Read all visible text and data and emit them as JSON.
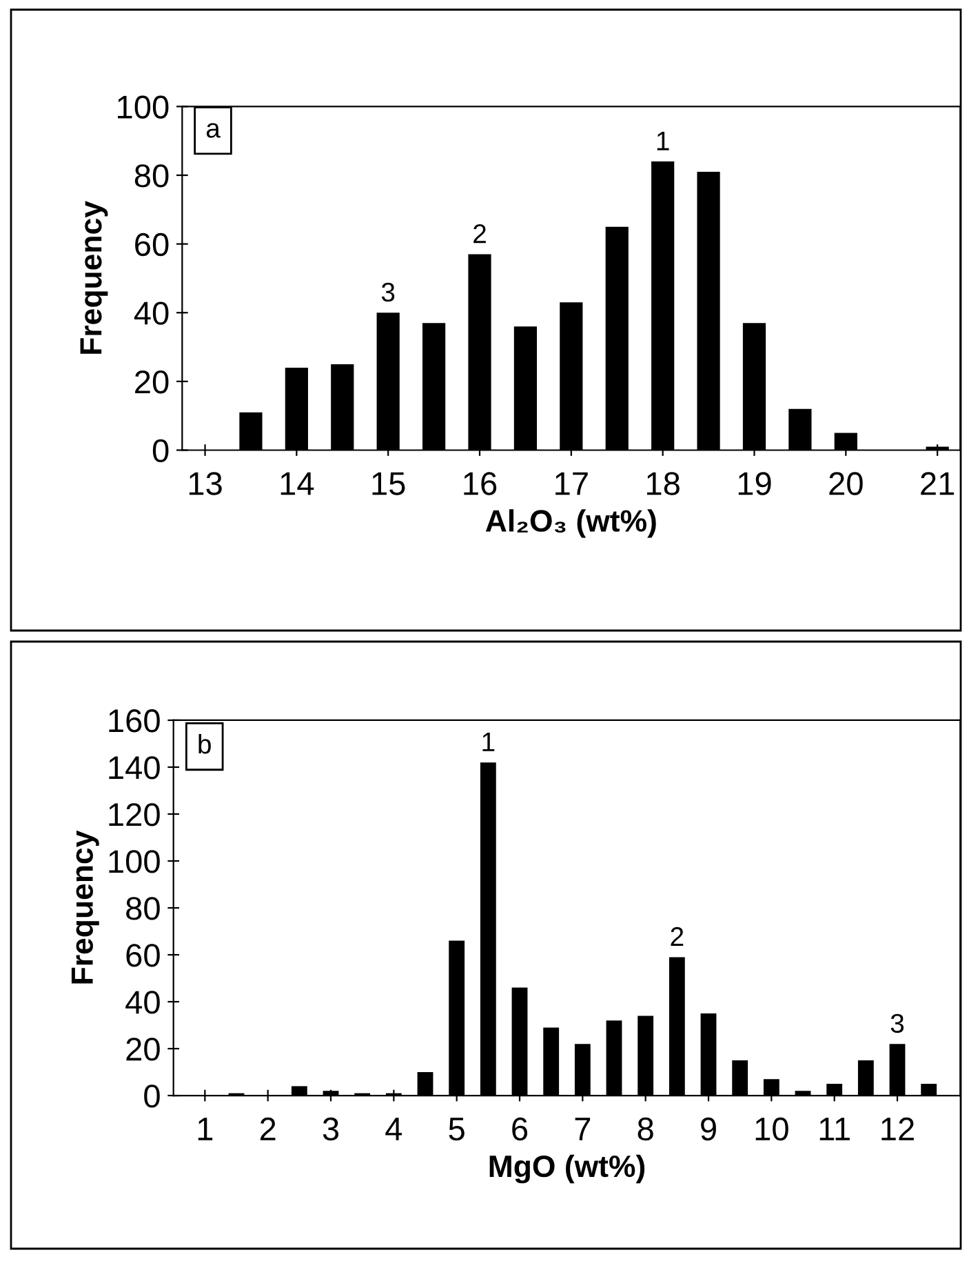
{
  "chart_data": [
    {
      "type": "bar",
      "xlabel": "Al₂O₃ (wt%)",
      "ylabel": "Frequency",
      "x": [
        13,
        13.5,
        14,
        14.5,
        15,
        15.5,
        16,
        16.5,
        17,
        17.5,
        18,
        18.5,
        19,
        19.5,
        20,
        20.5,
        21
      ],
      "series": [
        {
          "color": "#000000",
          "values": [
            0,
            11,
            24,
            25,
            40,
            37,
            57,
            36,
            43,
            65,
            84,
            81,
            37,
            12,
            5,
            0,
            1
          ]
        }
      ],
      "xlim": [
        12.75,
        21.25
      ],
      "xticks": [
        13,
        14,
        15,
        16,
        17,
        18,
        19,
        20,
        21
      ],
      "ylim": [
        0,
        100
      ],
      "yticks": [
        0,
        20,
        40,
        60,
        80,
        100
      ],
      "annotations": [
        "a",
        {
          "text": "1",
          "x": 18,
          "y": 84
        },
        {
          "text": "2",
          "x": 16,
          "y": 57
        },
        {
          "text": "3",
          "x": 15,
          "y": 40
        }
      ]
    },
    {
      "type": "bar",
      "xlabel": "MgO (wt%)",
      "ylabel": "Frequency",
      "x": [
        1,
        1.5,
        2,
        2.5,
        3,
        3.5,
        4,
        4.5,
        5,
        5.5,
        6,
        6.5,
        7,
        7.5,
        8,
        8.5,
        9,
        9.5,
        10,
        10.5,
        11,
        11.5,
        12,
        12.5
      ],
      "series": [
        {
          "color": "#000000",
          "values": [
            0,
            1,
            0,
            4,
            2,
            1,
            1,
            10,
            66,
            142,
            46,
            29,
            22,
            32,
            34,
            59,
            35,
            15,
            7,
            2,
            5,
            15,
            22,
            5
          ]
        }
      ],
      "xlim": [
        0.5,
        13
      ],
      "xticks": [
        1,
        2,
        3,
        4,
        5,
        6,
        7,
        8,
        9,
        10,
        11,
        12
      ],
      "ylim": [
        0,
        160
      ],
      "yticks": [
        0,
        20,
        40,
        60,
        80,
        100,
        120,
        140,
        160
      ],
      "annotations": [
        "b",
        {
          "text": "1",
          "x": 5.5,
          "y": 142
        },
        {
          "text": "2",
          "x": 8.5,
          "y": 59
        },
        {
          "text": "3",
          "x": 12,
          "y": 22
        }
      ]
    }
  ]
}
